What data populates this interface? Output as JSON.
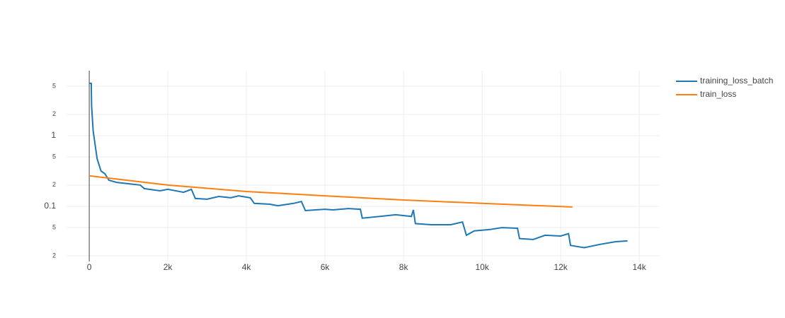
{
  "chart_data": {
    "type": "line",
    "log_y": true,
    "grid": true,
    "legend": "top-right",
    "xlim": [
      -560,
      14520
    ],
    "ylim": [
      0.0166,
      8.3
    ],
    "xticks": [
      0,
      {
        "value": 2000,
        "label": "2k"
      },
      {
        "value": 4000,
        "label": "4k"
      },
      {
        "value": 6000,
        "label": "6k"
      },
      {
        "value": 8000,
        "label": "8k"
      },
      {
        "value": 10000,
        "label": "10k"
      },
      {
        "value": 12000,
        "label": "12k"
      },
      {
        "value": 14000,
        "label": "14k"
      }
    ],
    "yticks": [
      {
        "value": 0.02,
        "label": "2"
      },
      {
        "value": 0.05,
        "label": "5"
      },
      0.1,
      {
        "value": 0.2,
        "label": "2"
      },
      {
        "value": 0.5,
        "label": "5"
      },
      1,
      2,
      5
    ],
    "series": [
      {
        "name": "training_loss_batch",
        "color": "#1f77b4",
        "x": [
          0,
          50,
          60,
          100,
          150,
          200,
          300,
          400,
          500,
          700,
          1000,
          1300,
          1400,
          1800,
          2000,
          2400,
          2600,
          2700,
          3000,
          3300,
          3600,
          3800,
          4100,
          4200,
          4600,
          4800,
          5200,
          5400,
          5500,
          6000,
          6200,
          6600,
          6900,
          6950,
          7400,
          7800,
          8200,
          8250,
          8300,
          8700,
          9200,
          9500,
          9600,
          9800,
          10200,
          10500,
          10900,
          10950,
          11300,
          11600,
          12000,
          12200,
          12250,
          12600,
          13000,
          13400,
          13700
        ],
        "values": [
          5.5,
          5.5,
          2.63,
          1.17,
          0.74,
          0.47,
          0.316,
          0.288,
          0.234,
          0.218,
          0.209,
          0.2,
          0.178,
          0.166,
          0.174,
          0.158,
          0.174,
          0.129,
          0.126,
          0.138,
          0.132,
          0.141,
          0.132,
          0.11,
          0.107,
          0.102,
          0.11,
          0.117,
          0.087,
          0.091,
          0.089,
          0.093,
          0.091,
          0.068,
          0.072,
          0.076,
          0.072,
          0.089,
          0.057,
          0.055,
          0.055,
          0.06,
          0.039,
          0.045,
          0.047,
          0.05,
          0.049,
          0.035,
          0.034,
          0.039,
          0.038,
          0.041,
          0.028,
          0.026,
          0.029,
          0.0316,
          0.0324
        ]
      },
      {
        "name": "train_loss",
        "color": "#ff7f0e",
        "x": [
          0,
          2000,
          4000,
          6000,
          8000,
          10000,
          12300
        ],
        "values": [
          0.27,
          0.2,
          0.162,
          0.141,
          0.123,
          0.11,
          0.098
        ]
      }
    ]
  }
}
